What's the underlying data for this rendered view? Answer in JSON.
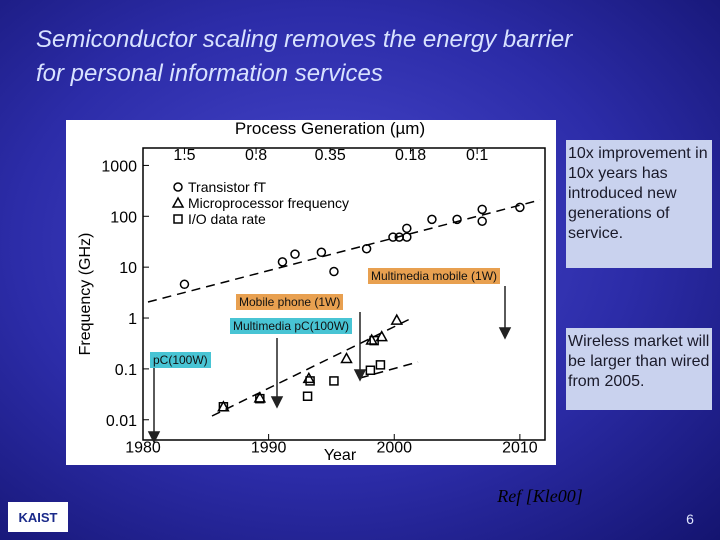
{
  "title_lines": [
    "Semiconductor scaling removes the energy barrier",
    "for personal information services"
  ],
  "notes": [
    "10x improvement in 10x years has introduced new generations of service.",
    "Wireless market will be larger than wired from 2005."
  ],
  "reference": "Ref [Kle00]",
  "logo": "KAIST",
  "page_number": 6,
  "chart_data": {
    "type": "scatter",
    "title": "Process Generation (µm)",
    "top_ticks": [
      {
        "value": 1983.3,
        "label": "1.5"
      },
      {
        "value": 1989,
        "label": "0.8"
      },
      {
        "value": 1994.9,
        "label": "0.35"
      },
      {
        "value": 2001.3,
        "label": "0.18"
      },
      {
        "value": 2006.6,
        "label": "0.1"
      }
    ],
    "xlabel": "Year",
    "ylabel": "Frequency (GHz)",
    "xlim": [
      1980,
      2012
    ],
    "xticks": [
      1980,
      1990,
      2000,
      2010
    ],
    "ylim": [
      0.004,
      2200
    ],
    "yticks": [
      0.01,
      0.1,
      1,
      10,
      100,
      1000
    ],
    "log_y": true,
    "series": [
      {
        "name": "Transistor fT",
        "marker": "circle",
        "color": "#000000",
        "x": [
          1983.3,
          1991.1,
          1992.1,
          1994.2,
          1995.2,
          1997.8,
          1999.9,
          2000.4,
          2001,
          2001,
          2003,
          2005,
          2007,
          2007,
          2010
        ],
        "values": [
          4.6,
          12.7,
          18,
          19.6,
          8.2,
          23,
          39,
          39,
          39,
          58,
          87,
          87,
          137,
          80,
          150
        ]
      },
      {
        "name": "Microprocessor frequency",
        "marker": "triangle",
        "color": "#000000",
        "x": [
          1986.4,
          1989.3,
          1993.2,
          1996.2,
          1998.2,
          1999,
          2000.2
        ],
        "values": [
          0.018,
          0.027,
          0.065,
          0.16,
          0.37,
          0.43,
          0.91
        ]
      },
      {
        "name": "I/O data rate",
        "marker": "square",
        "color": "#000000",
        "x": [
          1986.4,
          1989.3,
          1993.1,
          1993.3,
          1995.2,
          1998.1,
          1998.9,
          1998.4
        ],
        "values": [
          0.018,
          0.026,
          0.029,
          0.058,
          0.058,
          0.094,
          0.12,
          0.36
        ]
      }
    ],
    "annotations": [
      "Multimedia mobile (1W)",
      "Mobile phone (1W)",
      "Multimedia pC(100W)",
      "pC(100W)"
    ]
  }
}
